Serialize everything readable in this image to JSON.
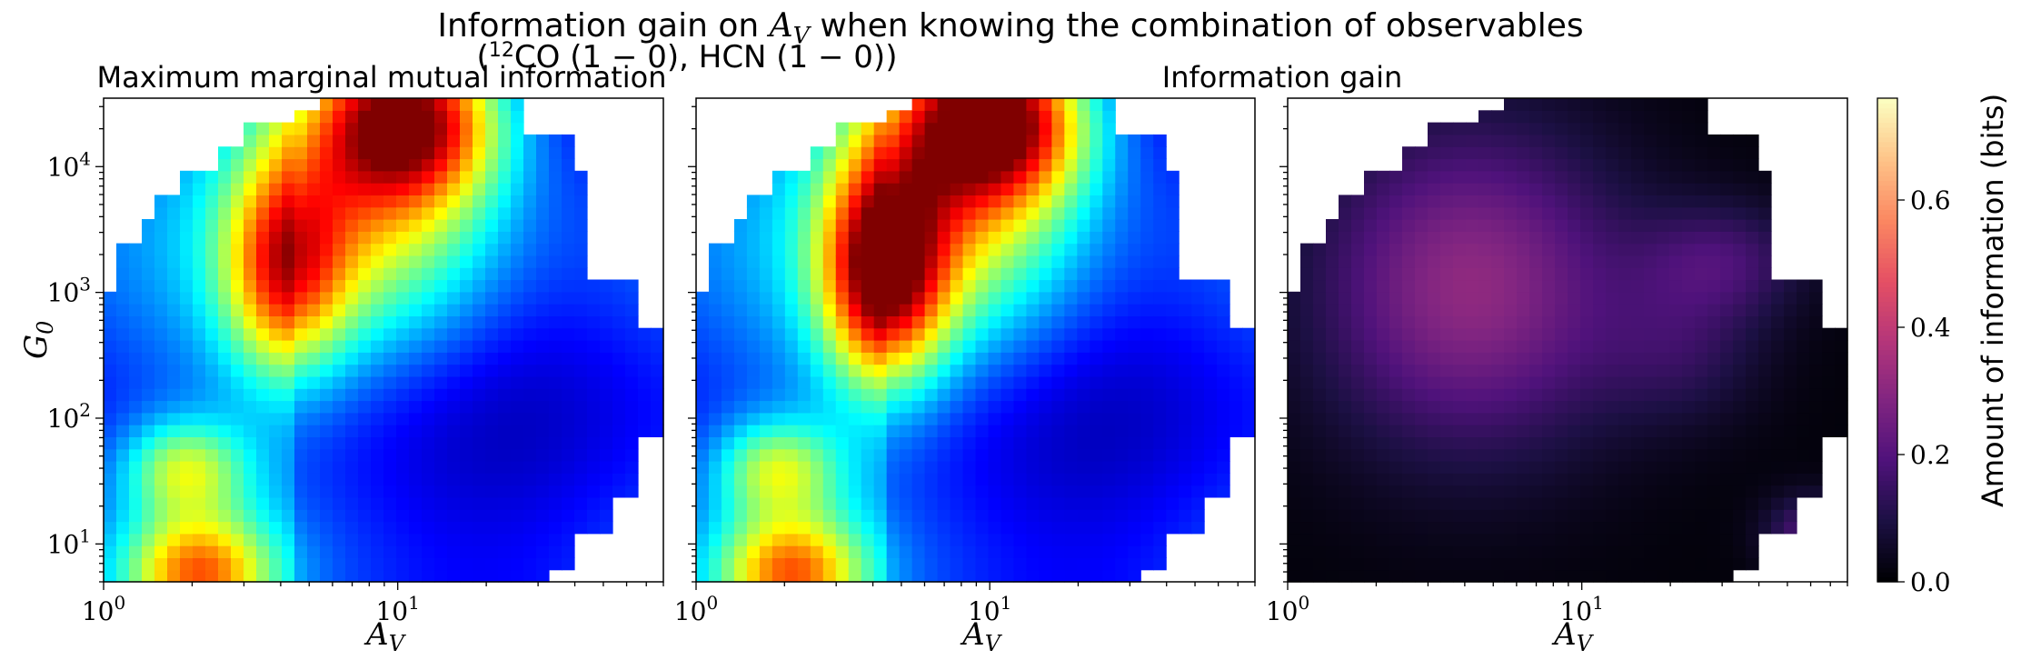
{
  "figure": {
    "suptitle_prefix": "Information gain on",
    "suptitle_var": "A",
    "suptitle_var_sub": "V",
    "suptitle_suffix": "when knowing the combination of observables",
    "cmap_left": "jet",
    "cmap_right": "magma"
  },
  "panels": [
    {
      "title": "Maximum marginal mutual information"
    },
    {
      "title_open": "(",
      "title_sup": "12",
      "title_co": "CO (1 − 0), HCN (1 − 0)",
      "title_close": ")"
    },
    {
      "title": "Information gain"
    }
  ],
  "axes": {
    "xlabel_main": "A",
    "xlabel_sub": "V",
    "ylabel_main": "G",
    "ylabel_sub": "0",
    "x_ticks": [
      {
        "base": "10",
        "exp": "0"
      },
      {
        "base": "10",
        "exp": "1"
      }
    ],
    "y_ticks": [
      {
        "base": "10",
        "exp": "1"
      },
      {
        "base": "10",
        "exp": "2"
      },
      {
        "base": "10",
        "exp": "3"
      },
      {
        "base": "10",
        "exp": "4"
      }
    ]
  },
  "colorbar": {
    "label": "Amount of information (bits)",
    "ticks": [
      "0.0",
      "0.2",
      "0.4",
      "0.6"
    ]
  },
  "chart_data": [
    {
      "type": "heatmap",
      "title": "Maximum marginal mutual information",
      "xlabel": "A_V",
      "ylabel": "G_0",
      "x_scale": "log",
      "y_scale": "log",
      "xlim": [
        1,
        80
      ],
      "ylim": [
        5,
        35000
      ],
      "colormap": "jet",
      "features": [
        {
          "x": 11,
          "y": 25000,
          "value": 0.65,
          "sx": 0.17,
          "sy": 0.17
        },
        {
          "x": 9,
          "y": 7000,
          "value": 0.45,
          "sx": 0.22,
          "sy": 0.35
        },
        {
          "x": 4.2,
          "y": 1500,
          "value": 0.5,
          "sx": 0.11,
          "sy": 0.22
        },
        {
          "x": 2.1,
          "y": 6,
          "value": 0.5,
          "sx": 0.13,
          "sy": 0.12
        },
        {
          "x": 1.9,
          "y": 40,
          "value": 0.35,
          "sx": 0.11,
          "sy": 0.1
        }
      ]
    },
    {
      "type": "heatmap",
      "title": "(12CO (1 − 0), HCN (1 − 0))",
      "xlabel": "A_V",
      "ylabel": "G_0",
      "x_scale": "log",
      "y_scale": "log",
      "xlim": [
        1,
        80
      ],
      "ylim": [
        5,
        35000
      ],
      "colormap": "jet",
      "features": [
        {
          "x": 10.5,
          "y": 25000,
          "value": 0.72,
          "sx": 0.17,
          "sy": 0.17
        },
        {
          "x": 8.5,
          "y": 7000,
          "value": 0.45,
          "sx": 0.22,
          "sy": 0.35
        },
        {
          "x": 4.4,
          "y": 1400,
          "value": 0.7,
          "sx": 0.11,
          "sy": 0.23
        },
        {
          "x": 2.1,
          "y": 6,
          "value": 0.5,
          "sx": 0.13,
          "sy": 0.12
        },
        {
          "x": 1.9,
          "y": 40,
          "value": 0.35,
          "sx": 0.11,
          "sy": 0.1
        }
      ]
    },
    {
      "type": "heatmap",
      "title": "Information gain",
      "xlabel": "A_V",
      "x_scale": "log",
      "y_scale": "log",
      "xlim": [
        1,
        80
      ],
      "ylim": [
        5,
        35000
      ],
      "colormap": "magma",
      "features": [
        {
          "x": 4.2,
          "y": 1100,
          "value": 0.3,
          "sx": 0.27,
          "sy": 0.33
        },
        {
          "x": 30,
          "y": 1800,
          "value": 0.15,
          "sx": 0.15,
          "sy": 0.12
        },
        {
          "x": 22,
          "y": 350,
          "value": 0.1,
          "sx": 0.15,
          "sy": 0.15
        },
        {
          "x": 60,
          "y": 12,
          "value": 0.18,
          "sx": 0.08,
          "sy": 0.08
        }
      ]
    }
  ],
  "colorbar_scale": {
    "vmin": 0.0,
    "vmax": 0.76
  }
}
